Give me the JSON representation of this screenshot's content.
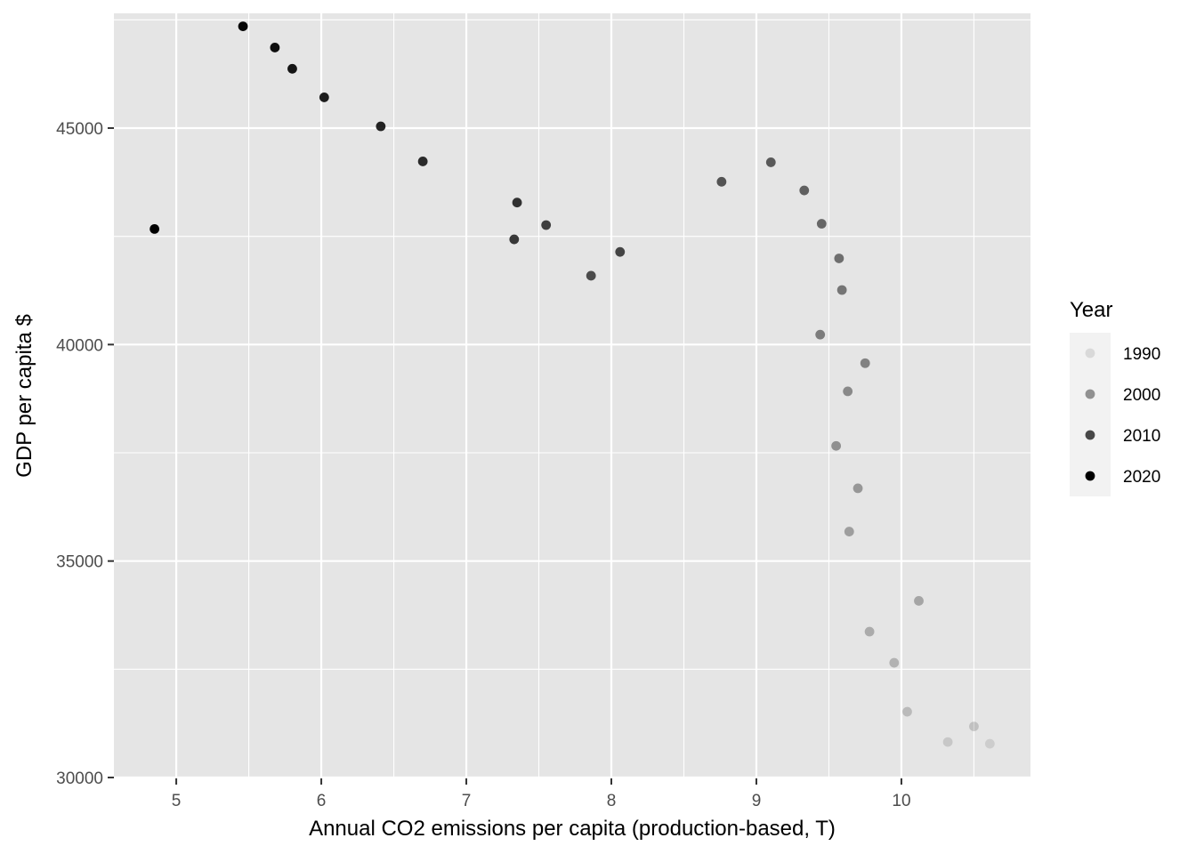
{
  "chart_data": {
    "type": "scatter",
    "xlabel": "Annual CO2 emissions per capita (production-based, T)",
    "ylabel": "GDP per capita $",
    "xlim": [
      4.57,
      10.89
    ],
    "ylim": [
      29980,
      47650
    ],
    "x_ticks": [
      5,
      6,
      7,
      8,
      9,
      10
    ],
    "x_tick_labels": [
      "5",
      "6",
      "7",
      "8",
      "9",
      "10"
    ],
    "y_ticks": [
      30000,
      35000,
      40000,
      45000
    ],
    "y_tick_labels": [
      "30000",
      "35000",
      "40000",
      "45000"
    ],
    "grid": true,
    "panel_background": "#e5e5e5",
    "grid_color": "#ffffff",
    "point_color": "#000000",
    "legend": {
      "title": "Year",
      "position": "right",
      "entries": [
        "1990",
        "2000",
        "2010",
        "2020"
      ]
    },
    "points": [
      {
        "year": 1990,
        "x": 10.61,
        "y": 30780
      },
      {
        "year": 1991,
        "x": 10.32,
        "y": 30820
      },
      {
        "year": 1992,
        "x": 10.5,
        "y": 31180
      },
      {
        "year": 1993,
        "x": 10.04,
        "y": 31520
      },
      {
        "year": 1994,
        "x": 9.95,
        "y": 32650
      },
      {
        "year": 1995,
        "x": 9.78,
        "y": 33370
      },
      {
        "year": 1996,
        "x": 10.12,
        "y": 34080
      },
      {
        "year": 1997,
        "x": 9.64,
        "y": 35680
      },
      {
        "year": 1998,
        "x": 9.7,
        "y": 36680
      },
      {
        "year": 1999,
        "x": 9.55,
        "y": 37660
      },
      {
        "year": 2000,
        "x": 9.63,
        "y": 38920
      },
      {
        "year": 2001,
        "x": 9.75,
        "y": 39570
      },
      {
        "year": 2002,
        "x": 9.44,
        "y": 40230
      },
      {
        "year": 2003,
        "x": 9.59,
        "y": 41260
      },
      {
        "year": 2004,
        "x": 9.57,
        "y": 41990
      },
      {
        "year": 2005,
        "x": 9.45,
        "y": 42790
      },
      {
        "year": 2006,
        "x": 9.33,
        "y": 43560
      },
      {
        "year": 2007,
        "x": 9.1,
        "y": 44210
      },
      {
        "year": 2008,
        "x": 8.76,
        "y": 43760
      },
      {
        "year": 2009,
        "x": 7.86,
        "y": 41590
      },
      {
        "year": 2010,
        "x": 8.06,
        "y": 42140
      },
      {
        "year": 2011,
        "x": 7.55,
        "y": 42760
      },
      {
        "year": 2012,
        "x": 7.33,
        "y": 42430
      },
      {
        "year": 2013,
        "x": 7.35,
        "y": 43280
      },
      {
        "year": 2014,
        "x": 6.7,
        "y": 44230
      },
      {
        "year": 2015,
        "x": 6.41,
        "y": 45040
      },
      {
        "year": 2016,
        "x": 6.02,
        "y": 45710
      },
      {
        "year": 2017,
        "x": 5.8,
        "y": 46370
      },
      {
        "year": 2018,
        "x": 5.68,
        "y": 46860
      },
      {
        "year": 2019,
        "x": 5.46,
        "y": 47350
      },
      {
        "year": 2020,
        "x": 4.85,
        "y": 42670
      }
    ]
  }
}
